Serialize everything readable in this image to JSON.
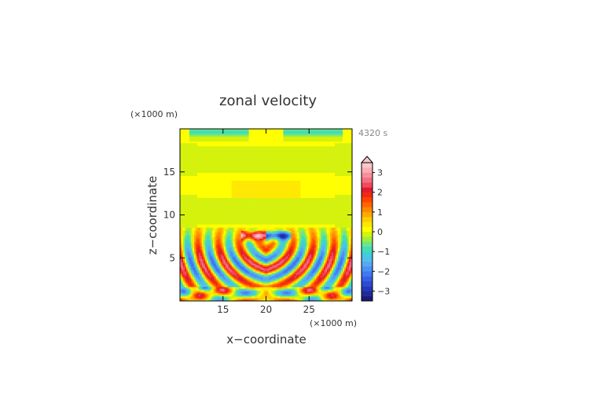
{
  "chart_data": {
    "type": "heatmap",
    "title": "zonal velocity",
    "time_label": "4320 s",
    "xlabel": "x−coordinate",
    "ylabel": "z−coordinate",
    "x_unit": "(×1000 m)",
    "y_unit": "(×1000 m)",
    "xlim": [
      10,
      30
    ],
    "ylim": [
      0,
      20
    ],
    "x_ticks": [
      15,
      20,
      25
    ],
    "y_ticks": [
      5,
      10,
      15
    ],
    "x_tick_labels": [
      "15",
      "20",
      "25"
    ],
    "y_tick_labels": [
      "5",
      "10",
      "15"
    ],
    "colorbar": {
      "levels": [
        -3.5,
        -3.25,
        -3,
        -2.75,
        -2.5,
        -2.25,
        -2,
        -1.75,
        -1.5,
        -1.25,
        -1,
        -0.75,
        -0.5,
        -0.25,
        0,
        0.25,
        0.5,
        0.75,
        1,
        1.25,
        1.5,
        1.75,
        2,
        2.25,
        2.5,
        2.75,
        3,
        3.25,
        3.5
      ],
      "colors": [
        "#1a1a78",
        "#1e2a9a",
        "#2438b8",
        "#2c4ad2",
        "#3560e4",
        "#3f78f0",
        "#4b90f2",
        "#58a8f2",
        "#4ec0ea",
        "#3ed0d8",
        "#44dcb4",
        "#66e68e",
        "#9eee3a",
        "#d4f20c",
        "#ffff00",
        "#ffe800",
        "#ffcc00",
        "#ffaa00",
        "#ff8800",
        "#ff6600",
        "#ff4400",
        "#f02a12",
        "#e01c2c",
        "#f24860",
        "#f47080",
        "#f69098",
        "#f8aeb4",
        "#fac8ca"
      ],
      "tick_values": [
        3,
        2,
        1,
        0,
        -1,
        -2,
        -3
      ],
      "tick_labels": [
        "3",
        "2",
        "1",
        "0",
        "−1",
        "−2",
        "−3"
      ],
      "extend": "max"
    },
    "field": {
      "description_values": "u(x,z) mirrored about x = 20",
      "max": 3.2,
      "min": -3.4
    }
  },
  "colors": {
    "axis": "#000000",
    "text": "#333333",
    "mid_layer": "#9eee3a",
    "background_layer": "#ffff00"
  }
}
